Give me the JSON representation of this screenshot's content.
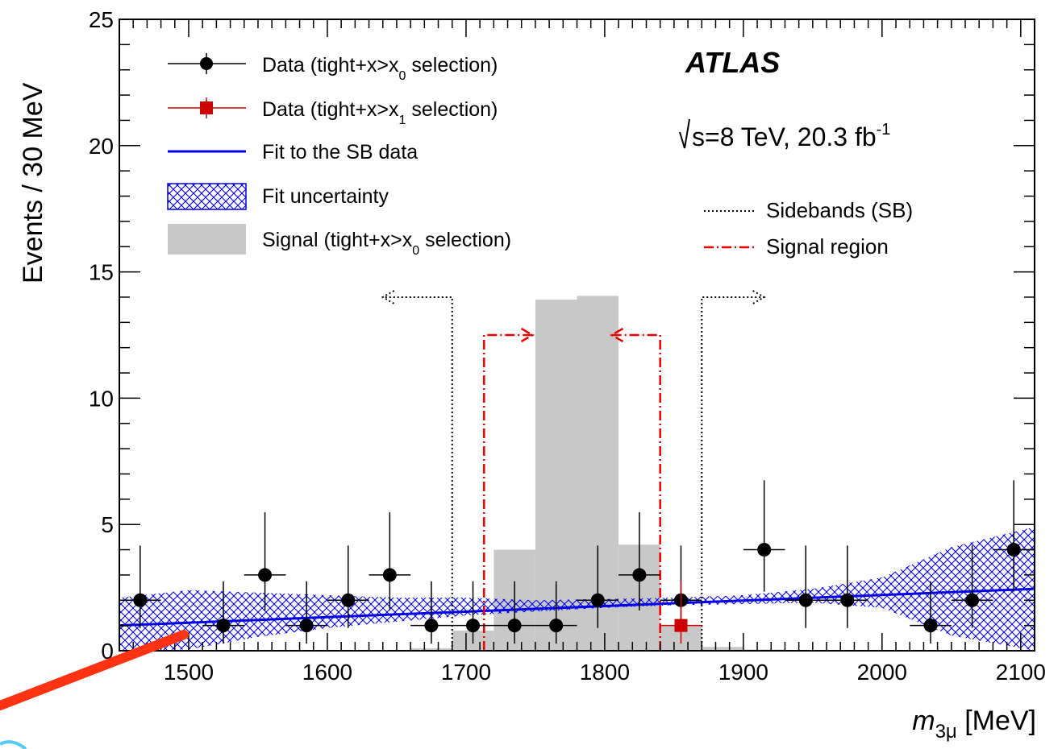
{
  "chart_data": {
    "type": "histogram",
    "ylabel": "Events / 30 MeV",
    "xlabel_main": "m",
    "xlabel_sub": "3μ",
    "xlabel_unit": " [MeV]",
    "xlim": [
      1450,
      2110
    ],
    "ylim": [
      0,
      25
    ],
    "xticks": [
      1500,
      1600,
      1700,
      1800,
      1900,
      2000,
      2100
    ],
    "yticks": [
      0,
      5,
      10,
      15,
      20,
      25
    ],
    "atlas_label": "ATLAS",
    "energy_label": "s=8 TeV, 20.3 fb",
    "lumi_sup": "-1",
    "legend": {
      "data0": {
        "pre": "Data (tight+x>x",
        "sub": "0",
        "post": " selection)"
      },
      "data1": {
        "pre": "Data (tight+x>x",
        "sub": "1",
        "post": " selection)"
      },
      "fit": "Fit to the SB data",
      "unc": "Fit uncertainty",
      "signal": {
        "pre": "Signal (tight+x>x",
        "sub": "0",
        "post": " selection)"
      },
      "sidebands": "Sidebands (SB)",
      "signal_region": "Signal region"
    },
    "colors": {
      "data0": "#000000",
      "data1": "#cc0000",
      "fit": "#0000ee",
      "unc": "#0000ee",
      "signal": "#c8c8c8",
      "signal_region": "#ee0000",
      "sidebands": "#000000"
    },
    "data_tight_x0": {
      "x": [
        1465,
        1525,
        1555,
        1585,
        1615,
        1645,
        1675,
        1705,
        1735,
        1765,
        1795,
        1825,
        1855,
        1915,
        1945,
        1975,
        2035,
        2065,
        2095
      ],
      "y": [
        2,
        1,
        3,
        1,
        2,
        3,
        1,
        1,
        1,
        1,
        2,
        3,
        2,
        4,
        2,
        2,
        1,
        2,
        4
      ]
    },
    "data_tight_x1": {
      "x": [
        1855
      ],
      "y": [
        1
      ]
    },
    "signal_hist": {
      "edges": [
        1660,
        1690,
        1720,
        1750,
        1780,
        1810,
        1840,
        1870,
        1900,
        1930
      ],
      "values": [
        0.1,
        0.8,
        4.0,
        13.9,
        14.05,
        4.2,
        1.0,
        0.15,
        0.05
      ]
    },
    "fit_line": {
      "x": [
        1450,
        2110
      ],
      "y": [
        1.0,
        2.45
      ]
    },
    "fit_uncertainty": {
      "x": [
        1450,
        1500,
        1550,
        1600,
        1650,
        1700,
        1750,
        1800,
        1850,
        1900,
        1950,
        2000,
        2050,
        2110
      ],
      "lo": [
        0.0,
        0.05,
        0.55,
        0.9,
        1.15,
        1.4,
        1.55,
        1.7,
        1.8,
        1.85,
        1.9,
        1.7,
        0.6,
        0.0
      ],
      "hi": [
        2.1,
        2.4,
        2.3,
        2.2,
        2.1,
        2.1,
        2.0,
        2.05,
        2.1,
        2.2,
        2.45,
        2.9,
        4.1,
        4.9
      ]
    },
    "sidebands": {
      "left": 1690,
      "right": 1870,
      "height": 14.0,
      "arrow_left_to": 1640,
      "arrow_right_to": 1915
    },
    "signal_region": {
      "left": 1713,
      "right": 1840,
      "height": 12.5,
      "arrow_len": 35
    }
  }
}
